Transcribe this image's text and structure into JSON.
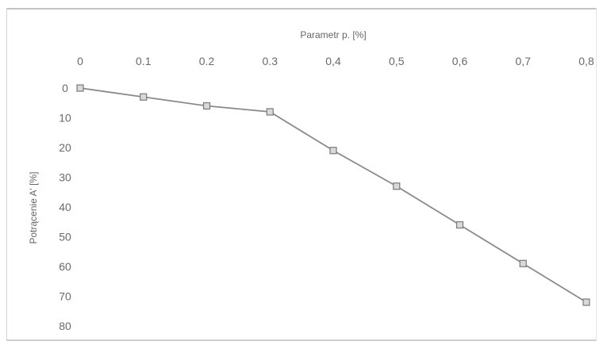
{
  "chart_data": {
    "type": "line",
    "xlabel": "Parametr p. [%]",
    "ylabel": "Potrącenie A' [%]",
    "x_ticks": [
      "0",
      "0.1",
      "0.2",
      "0.3",
      "0,4",
      "0,5",
      "0,6",
      "0,7",
      "0,8"
    ],
    "y_ticks": [
      "0",
      "10",
      "20",
      "30",
      "40",
      "50",
      "60",
      "70",
      "80"
    ],
    "xlim": [
      0,
      0.8
    ],
    "ylim": [
      0,
      80
    ],
    "x_axis_position": "top",
    "y_axis_inverted": true,
    "grid": false,
    "series": [
      {
        "x": [
          0,
          0.1,
          0.2,
          0.3,
          0.4,
          0.5,
          0.6,
          0.7,
          0.8
        ],
        "y": [
          0,
          3,
          6,
          8,
          21,
          33,
          46,
          59,
          72
        ]
      }
    ],
    "colors": {
      "line": "#8a8a8a",
      "marker": "#7a7a7a",
      "text": "#6a6a6a"
    }
  }
}
